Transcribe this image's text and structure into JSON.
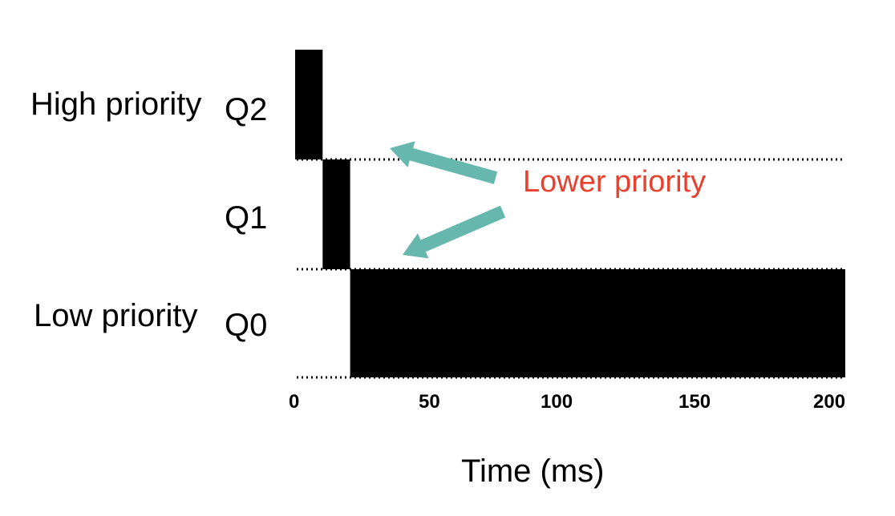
{
  "diagram": {
    "levels": [
      {
        "side_label": "High priority",
        "queue": "Q2"
      },
      {
        "side_label": "",
        "queue": "Q1"
      },
      {
        "side_label": "Low priority",
        "queue": "Q0"
      }
    ],
    "bars": [
      {
        "queue": "Q2",
        "start": 0,
        "end": 10
      },
      {
        "queue": "Q1",
        "start": 10,
        "end": 20
      },
      {
        "queue": "Q0",
        "start": 20,
        "end": 200
      }
    ],
    "x_ticks": [
      "0",
      "50",
      "100",
      "150",
      "200"
    ],
    "x_range": [
      0,
      200
    ],
    "xlabel": "Time (ms)",
    "annotation": "Lower priority",
    "colors": {
      "bar": "#000000",
      "arrow": "#66b7ad",
      "annotation": "#e8412f"
    }
  }
}
